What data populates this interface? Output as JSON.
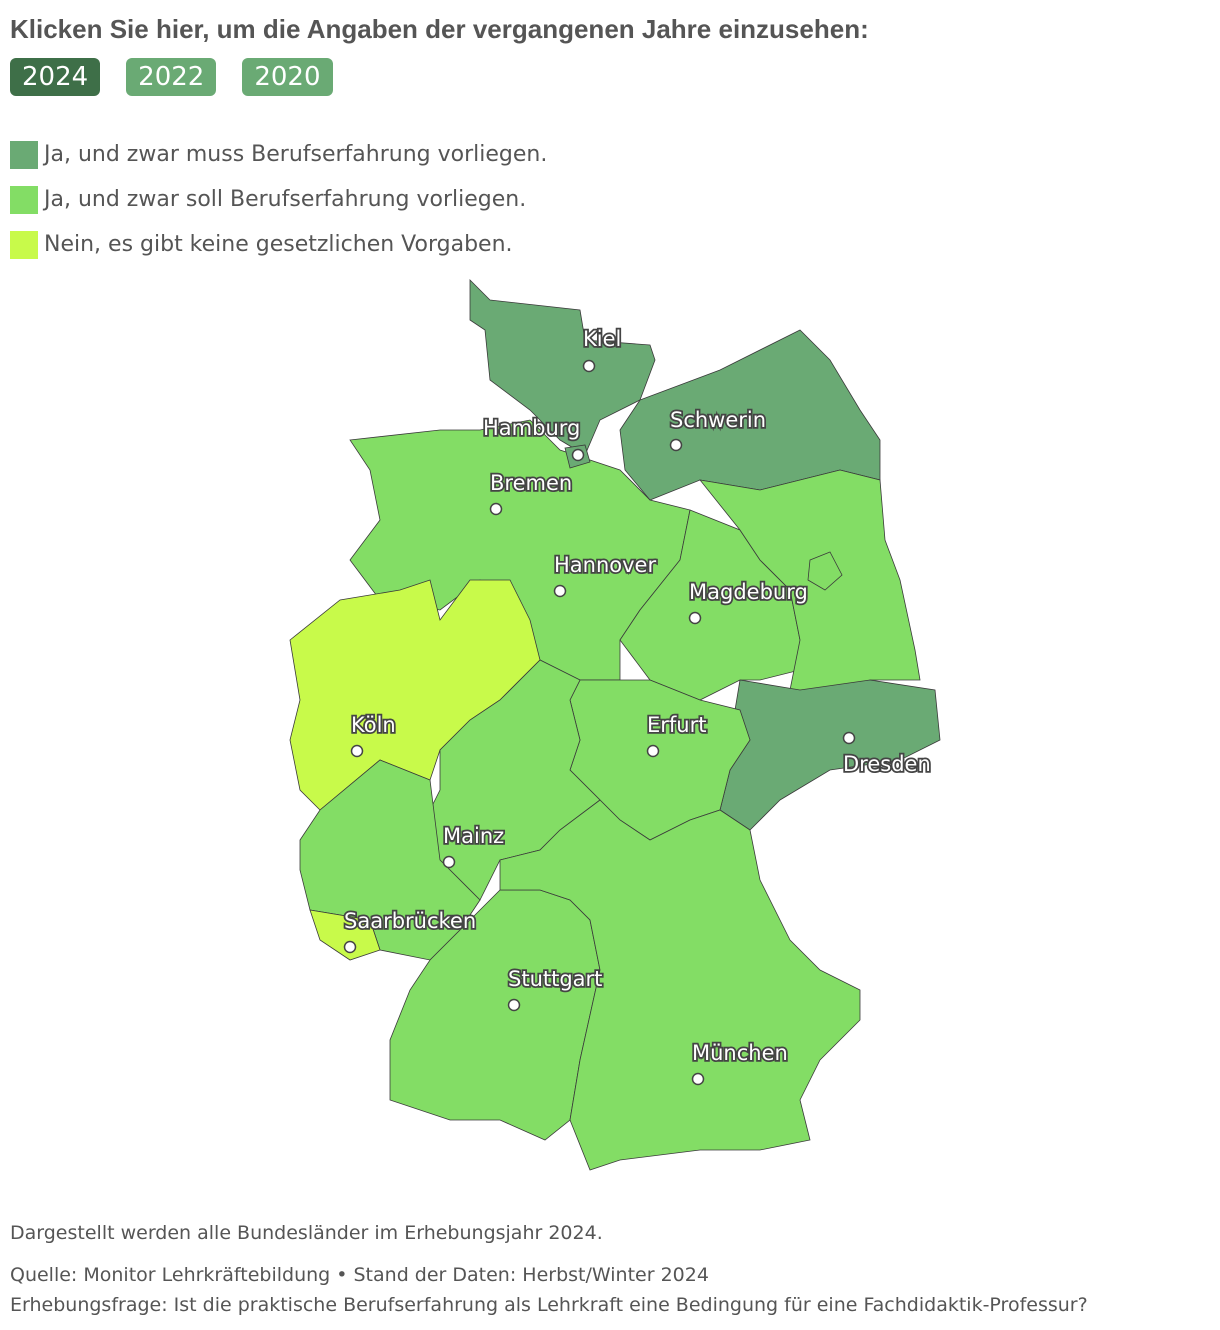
{
  "header": {
    "title": "Klicken Sie hier, um die Angaben der vergangenen Jahre einzusehen:"
  },
  "year_buttons": [
    {
      "label": "2024",
      "active": true
    },
    {
      "label": "2022",
      "active": false
    },
    {
      "label": "2020",
      "active": false
    }
  ],
  "button_colors": {
    "active": "#3e6f48",
    "inactive": "#6aaa74"
  },
  "legend": [
    {
      "label": "Ja, und zwar muss Berufserfahrung vorliegen.",
      "color": "#6aaa74"
    },
    {
      "label": "Ja, und zwar soll Berufserfahrung vorliegen.",
      "color": "#83dd65"
    },
    {
      "label": "Nein, es gibt keine gesetzlichen Vorgaben.",
      "color": "#c8fa4a"
    }
  ],
  "cities": [
    {
      "label": "Kiel"
    },
    {
      "label": "Hamburg"
    },
    {
      "label": "Schwerin"
    },
    {
      "label": "Bremen"
    },
    {
      "label": "Hannover"
    },
    {
      "label": "Magdeburg"
    },
    {
      "label": "Köln"
    },
    {
      "label": "Erfurt"
    },
    {
      "label": "Dresden"
    },
    {
      "label": "Mainz"
    },
    {
      "label": "Saarbrücken"
    },
    {
      "label": "Stuttgart"
    },
    {
      "label": "München"
    }
  ],
  "footer": {
    "note": "Dargestellt werden alle Bundesländer im Erhebungsjahr 2024.",
    "source": "Quelle: Monitor Lehrkräftebildung • Stand der Daten: Herbst/Winter 2024",
    "question": "Erhebungsfrage: Ist die praktische Berufserfahrung als Lehrkraft eine Bedingung für eine Fachdidaktik-Professur?"
  }
}
